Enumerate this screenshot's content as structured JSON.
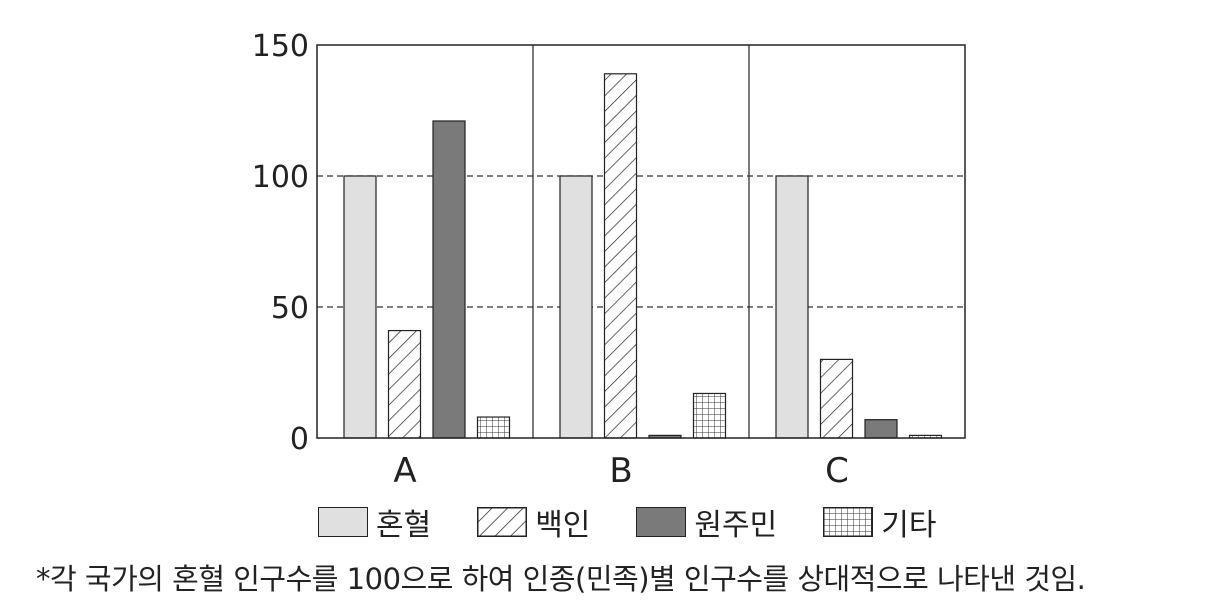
{
  "chart_data": {
    "type": "bar",
    "categories": [
      "A",
      "B",
      "C"
    ],
    "series": [
      {
        "name": "혼혈",
        "values": [
          100,
          100,
          100
        ],
        "fill": "#e0e0e0"
      },
      {
        "name": "백인",
        "values": [
          41,
          139,
          30
        ],
        "fill": "hatch"
      },
      {
        "name": "원주민",
        "values": [
          121,
          1,
          7
        ],
        "fill": "#7a7a7a"
      },
      {
        "name": "기타",
        "values": [
          8,
          17,
          1
        ],
        "fill": "grid"
      }
    ],
    "yticks": [
      0,
      50,
      100,
      150
    ],
    "ylim": [
      0,
      150
    ],
    "grid": "dashed at 50 and 100",
    "legend_position": "bottom"
  },
  "legend": {
    "mixed": "혼혈",
    "white": "백인",
    "native": "원주민",
    "other": "기타"
  },
  "footnote": "*각 국가의 혼혈 인구수를 100으로 하여 인종(민족)별 인구수를 상대적으로 나타낸 것임."
}
